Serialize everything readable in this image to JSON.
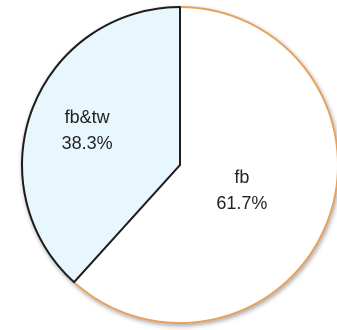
{
  "chart_data": {
    "type": "pie",
    "slices": [
      {
        "label": "fb",
        "value": 61.7,
        "value_label": "61.7%",
        "fill": "#ffffff",
        "stroke": "#e6a15c"
      },
      {
        "label": "fb&tw",
        "value": 38.3,
        "value_label": "38.3%",
        "fill": "#e8f7fd",
        "stroke": "#1a1a1a"
      }
    ],
    "start_angle_deg": 0,
    "direction": "clockwise",
    "legend": "none"
  }
}
